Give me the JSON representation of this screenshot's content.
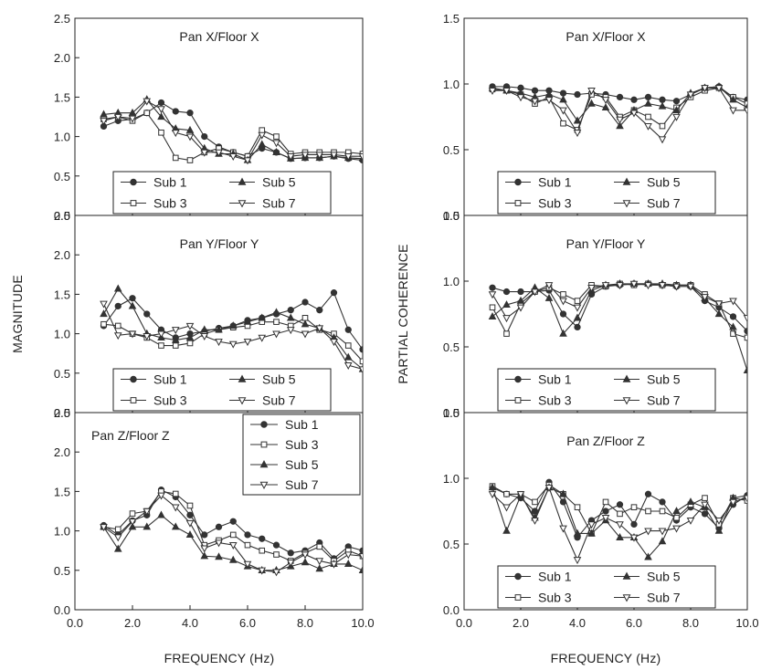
{
  "chart_data": [
    {
      "type": "line",
      "title": "Pan X/Floor X",
      "ylim": [
        0,
        2.5
      ],
      "x": [
        1,
        1.5,
        2,
        2.5,
        3,
        3.5,
        4,
        4.5,
        5,
        5.5,
        6,
        6.5,
        7,
        7.5,
        8,
        8.5,
        9,
        9.5,
        10
      ],
      "series": [
        {
          "name": "Sub 1",
          "marker": "circle",
          "values": [
            1.13,
            1.2,
            1.22,
            1.3,
            1.43,
            1.32,
            1.3,
            1.0,
            0.87,
            0.8,
            0.75,
            0.85,
            0.8,
            0.72,
            0.73,
            0.73,
            0.75,
            0.72,
            0.7
          ]
        },
        {
          "name": "Sub 3",
          "marker": "square",
          "values": [
            1.22,
            1.25,
            1.2,
            1.3,
            1.05,
            0.73,
            0.7,
            0.8,
            0.85,
            0.8,
            0.75,
            1.08,
            1.0,
            0.78,
            0.8,
            0.8,
            0.8,
            0.8,
            0.78
          ]
        },
        {
          "name": "Sub 5",
          "marker": "triangle-up",
          "values": [
            1.28,
            1.3,
            1.3,
            1.47,
            1.25,
            1.1,
            1.08,
            0.85,
            0.78,
            0.78,
            0.7,
            0.9,
            0.8,
            0.72,
            0.73,
            0.73,
            0.75,
            0.73,
            0.72
          ]
        },
        {
          "name": "Sub 7",
          "marker": "triangle-down",
          "values": [
            1.2,
            1.25,
            1.23,
            1.45,
            1.35,
            1.05,
            1.0,
            0.8,
            0.8,
            0.75,
            0.7,
            1.02,
            0.92,
            0.75,
            0.77,
            0.77,
            0.77,
            0.75,
            0.75
          ]
        }
      ],
      "legend": {
        "layout": "2x2",
        "order": [
          "Sub 1",
          "Sub 5",
          "Sub 3",
          "Sub 7"
        ]
      }
    },
    {
      "type": "line",
      "title": "Pan Y/Floor Y",
      "ylim": [
        0,
        2.5
      ],
      "x": [
        1,
        1.5,
        2,
        2.5,
        3,
        3.5,
        4,
        4.5,
        5,
        5.5,
        6,
        6.5,
        7,
        7.5,
        8,
        8.5,
        9,
        9.5,
        10
      ],
      "series": [
        {
          "name": "Sub 1",
          "marker": "circle",
          "values": [
            1.1,
            1.35,
            1.45,
            1.25,
            1.05,
            0.95,
            1.0,
            1.03,
            1.07,
            1.1,
            1.17,
            1.2,
            1.25,
            1.3,
            1.4,
            1.3,
            1.52,
            1.05,
            0.8
          ]
        },
        {
          "name": "Sub 3",
          "marker": "square",
          "values": [
            1.12,
            1.1,
            1.0,
            0.95,
            0.85,
            0.85,
            0.88,
            1.0,
            1.05,
            1.08,
            1.1,
            1.15,
            1.15,
            1.1,
            1.2,
            1.05,
            1.0,
            0.85,
            0.65
          ]
        },
        {
          "name": "Sub 5",
          "marker": "triangle-up",
          "values": [
            1.25,
            1.57,
            1.35,
            1.0,
            0.95,
            0.92,
            0.95,
            1.05,
            1.05,
            1.1,
            1.15,
            1.2,
            1.27,
            1.2,
            1.12,
            1.07,
            0.95,
            0.7,
            0.55
          ]
        },
        {
          "name": "Sub 7",
          "marker": "triangle-down",
          "values": [
            1.38,
            0.98,
            1.0,
            0.97,
            1.0,
            1.05,
            1.1,
            0.97,
            0.9,
            0.87,
            0.9,
            0.95,
            1.0,
            1.05,
            1.0,
            1.07,
            0.9,
            0.6,
            0.55
          ]
        }
      ],
      "legend": {
        "layout": "2x2",
        "order": [
          "Sub 1",
          "Sub 5",
          "Sub 3",
          "Sub 7"
        ]
      }
    },
    {
      "type": "line",
      "title": "Pan Z/Floor Z",
      "ylim": [
        0,
        2.5
      ],
      "xlabel": "FREQUENCY (Hz)",
      "x": [
        1,
        1.5,
        2,
        2.5,
        3,
        3.5,
        4,
        4.5,
        5,
        5.5,
        6,
        6.5,
        7,
        7.5,
        8,
        8.5,
        9,
        9.5,
        10
      ],
      "series": [
        {
          "name": "Sub 1",
          "marker": "circle",
          "values": [
            1.07,
            0.95,
            1.13,
            1.2,
            1.52,
            1.43,
            1.2,
            0.95,
            1.05,
            1.12,
            0.95,
            0.9,
            0.82,
            0.72,
            0.75,
            0.85,
            0.65,
            0.8,
            0.75
          ]
        },
        {
          "name": "Sub 3",
          "marker": "square",
          "values": [
            1.05,
            1.02,
            1.22,
            1.25,
            1.5,
            1.47,
            1.32,
            0.82,
            0.88,
            0.95,
            0.82,
            0.75,
            0.7,
            0.62,
            0.72,
            0.8,
            0.62,
            0.75,
            0.68
          ]
        },
        {
          "name": "Sub 5",
          "marker": "triangle-up",
          "values": [
            1.05,
            0.77,
            1.05,
            1.05,
            1.2,
            1.05,
            0.95,
            0.68,
            0.67,
            0.63,
            0.55,
            0.5,
            0.5,
            0.55,
            0.6,
            0.52,
            0.58,
            0.58,
            0.5
          ]
        },
        {
          "name": "Sub 7",
          "marker": "triangle-down",
          "values": [
            1.05,
            0.92,
            1.12,
            1.25,
            1.45,
            1.3,
            1.1,
            0.78,
            0.85,
            0.82,
            0.58,
            0.5,
            0.48,
            0.6,
            0.7,
            0.62,
            0.58,
            0.7,
            0.68
          ]
        }
      ],
      "legend": {
        "layout": "1x4",
        "order": [
          "Sub 1",
          "Sub 3",
          "Sub 5",
          "Sub 7"
        ]
      }
    },
    {
      "type": "line",
      "title": "Pan X/Floor X",
      "ylim": [
        0,
        1.5
      ],
      "x": [
        1,
        1.5,
        2,
        2.5,
        3,
        3.5,
        4,
        4.5,
        5,
        5.5,
        6,
        6.5,
        7,
        7.5,
        8,
        8.5,
        9,
        9.5,
        10
      ],
      "series": [
        {
          "name": "Sub 1",
          "marker": "circle",
          "values": [
            0.98,
            0.98,
            0.97,
            0.95,
            0.95,
            0.93,
            0.92,
            0.93,
            0.92,
            0.9,
            0.88,
            0.9,
            0.88,
            0.87,
            0.92,
            0.97,
            0.98,
            0.9,
            0.88
          ]
        },
        {
          "name": "Sub 3",
          "marker": "square",
          "values": [
            0.96,
            0.95,
            0.92,
            0.85,
            0.9,
            0.7,
            0.65,
            0.92,
            0.9,
            0.75,
            0.8,
            0.75,
            0.68,
            0.82,
            0.9,
            0.95,
            0.97,
            0.9,
            0.85
          ]
        },
        {
          "name": "Sub 5",
          "marker": "triangle-up",
          "values": [
            0.97,
            0.95,
            0.93,
            0.9,
            0.92,
            0.88,
            0.72,
            0.85,
            0.82,
            0.68,
            0.8,
            0.85,
            0.83,
            0.8,
            0.93,
            0.97,
            0.98,
            0.88,
            0.82
          ]
        },
        {
          "name": "Sub 7",
          "marker": "triangle-down",
          "values": [
            0.95,
            0.95,
            0.9,
            0.87,
            0.88,
            0.8,
            0.63,
            0.95,
            0.88,
            0.73,
            0.78,
            0.68,
            0.58,
            0.75,
            0.92,
            0.97,
            0.97,
            0.8,
            0.8
          ]
        }
      ],
      "legend": {
        "layout": "2x2",
        "order": [
          "Sub 1",
          "Sub 5",
          "Sub 3",
          "Sub 7"
        ]
      }
    },
    {
      "type": "line",
      "title": "Pan Y/Floor Y",
      "ylim": [
        0,
        1.5
      ],
      "x": [
        1,
        1.5,
        2,
        2.5,
        3,
        3.5,
        4,
        4.5,
        5,
        5.5,
        6,
        6.5,
        7,
        7.5,
        8,
        8.5,
        9,
        9.5,
        10
      ],
      "series": [
        {
          "name": "Sub 1",
          "marker": "circle",
          "values": [
            0.95,
            0.92,
            0.92,
            0.92,
            0.93,
            0.75,
            0.65,
            0.9,
            0.96,
            0.97,
            0.98,
            0.98,
            0.97,
            0.96,
            0.96,
            0.85,
            0.8,
            0.73,
            0.62
          ]
        },
        {
          "name": "Sub 3",
          "marker": "square",
          "values": [
            0.8,
            0.6,
            0.83,
            0.92,
            0.95,
            0.9,
            0.85,
            0.97,
            0.96,
            0.98,
            0.97,
            0.98,
            0.97,
            0.97,
            0.97,
            0.9,
            0.83,
            0.6,
            0.57
          ]
        },
        {
          "name": "Sub 5",
          "marker": "triangle-up",
          "values": [
            0.73,
            0.82,
            0.85,
            0.95,
            0.87,
            0.6,
            0.72,
            0.93,
            0.97,
            0.98,
            0.98,
            0.98,
            0.98,
            0.97,
            0.97,
            0.87,
            0.75,
            0.65,
            0.32
          ]
        },
        {
          "name": "Sub 7",
          "marker": "triangle-down",
          "values": [
            0.9,
            0.72,
            0.8,
            0.92,
            0.97,
            0.85,
            0.8,
            0.95,
            0.97,
            0.97,
            0.98,
            0.97,
            0.97,
            0.96,
            0.96,
            0.88,
            0.83,
            0.85,
            0.72
          ]
        }
      ],
      "legend": {
        "layout": "2x2",
        "order": [
          "Sub 1",
          "Sub 5",
          "Sub 3",
          "Sub 7"
        ]
      }
    },
    {
      "type": "line",
      "title": "Pan Z/Floor Z",
      "ylim": [
        0,
        1.5
      ],
      "xlabel": "FREQUENCY (Hz)",
      "x": [
        1,
        1.5,
        2,
        2.5,
        3,
        3.5,
        4,
        4.5,
        5,
        5.5,
        6,
        6.5,
        7,
        7.5,
        8,
        8.5,
        9,
        9.5,
        10
      ],
      "series": [
        {
          "name": "Sub 1",
          "marker": "circle",
          "values": [
            0.93,
            0.88,
            0.85,
            0.75,
            0.97,
            0.82,
            0.55,
            0.68,
            0.75,
            0.8,
            0.65,
            0.88,
            0.82,
            0.68,
            0.78,
            0.73,
            0.62,
            0.8,
            0.87
          ]
        },
        {
          "name": "Sub 3",
          "marker": "square",
          "values": [
            0.94,
            0.88,
            0.88,
            0.82,
            0.95,
            0.88,
            0.78,
            0.58,
            0.82,
            0.73,
            0.78,
            0.75,
            0.75,
            0.7,
            0.8,
            0.85,
            0.65,
            0.85,
            0.83
          ]
        },
        {
          "name": "Sub 5",
          "marker": "triangle-up",
          "values": [
            0.93,
            0.6,
            0.87,
            0.7,
            0.93,
            0.88,
            0.58,
            0.58,
            0.68,
            0.55,
            0.55,
            0.4,
            0.52,
            0.75,
            0.82,
            0.78,
            0.6,
            0.85,
            0.87
          ]
        },
        {
          "name": "Sub 7",
          "marker": "triangle-down",
          "values": [
            0.88,
            0.78,
            0.88,
            0.68,
            0.93,
            0.62,
            0.38,
            0.65,
            0.7,
            0.65,
            0.55,
            0.6,
            0.6,
            0.62,
            0.68,
            0.8,
            0.68,
            0.82,
            0.85
          ]
        }
      ],
      "legend": {
        "layout": "2x2",
        "order": [
          "Sub 1",
          "Sub 5",
          "Sub 3",
          "Sub 7"
        ]
      }
    }
  ],
  "left_axis": {
    "ylabel": "MAGNITUDE",
    "yticks": [
      "0.0",
      "0.5",
      "1.0",
      "1.5",
      "2.0",
      "2.5"
    ],
    "ytick_values": [
      0,
      0.5,
      1.0,
      1.5,
      2.0,
      2.5
    ]
  },
  "right_axis": {
    "ylabel": "PARTIAL COHERENCE",
    "yticks": [
      "0.0",
      "0.5",
      "1.0",
      "1.5"
    ],
    "ytick_values": [
      0,
      0.5,
      1.0,
      1.5
    ]
  },
  "x_axis": {
    "xlabel": "FREQUENCY (Hz)",
    "xlim": [
      0,
      10
    ],
    "xticks": [
      "0.0",
      "2.0",
      "4.0",
      "6.0",
      "8.0",
      "10.0"
    ],
    "xtick_values": [
      0,
      2,
      4,
      6,
      8,
      10
    ]
  },
  "style": {
    "line_color": "#333333",
    "frame_color": "#222222"
  }
}
